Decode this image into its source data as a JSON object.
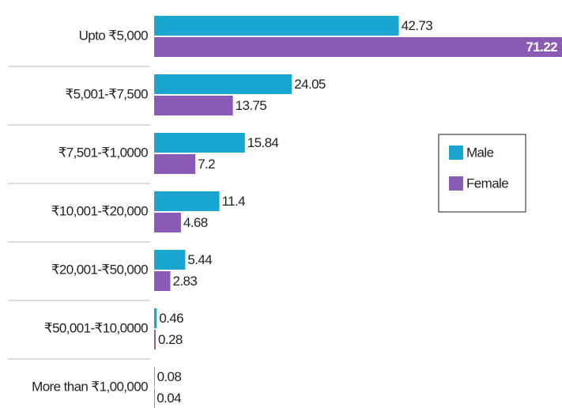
{
  "chart_data": {
    "type": "bar",
    "orientation": "horizontal",
    "categories": [
      "Upto ₹5,000",
      "₹5,001-₹7,500",
      "₹7,501-₹1,0000",
      "₹10,001-₹20,000",
      "₹20,001-₹50,000",
      "₹50,001-₹10,0000",
      "More than ₹1,00,000"
    ],
    "series": [
      {
        "name": "Male",
        "color": "#1aa6d0",
        "values": [
          42.73,
          24.05,
          15.84,
          11.4,
          5.44,
          0.46,
          0.08
        ]
      },
      {
        "name": "Female",
        "color": "#8a5bb5",
        "values": [
          71.22,
          13.75,
          7.2,
          4.68,
          2.83,
          0.28,
          0.04
        ]
      }
    ],
    "legend": "right"
  }
}
